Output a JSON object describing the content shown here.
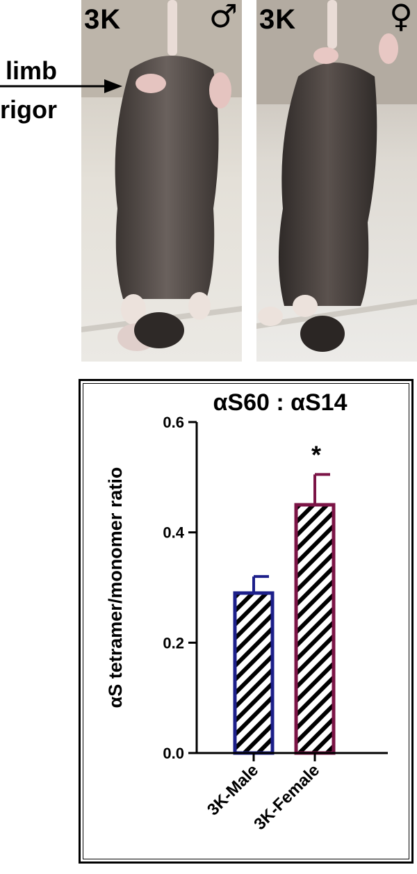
{
  "panels": {
    "male": {
      "label": "3K",
      "symbol": "♂"
    },
    "female": {
      "label": "3K",
      "symbol": "♀"
    }
  },
  "annotation": {
    "line1": "limb",
    "line2": "rigor"
  },
  "colors": {
    "male_bar": "#1c1f8a",
    "female_bar": "#7b1446",
    "axis": "#000000"
  },
  "chart_data": {
    "type": "bar",
    "title": "αS60 : αS14",
    "ylabel": "αS tetramer/monomer ratio",
    "xlabel": "",
    "ylim": [
      0,
      0.6
    ],
    "yticks": [
      0.0,
      0.2,
      0.4,
      0.6
    ],
    "ytick_labels": [
      "0.0",
      "0.2",
      "0.4",
      "0.6"
    ],
    "categories": [
      "3K-Male",
      "3K-Female"
    ],
    "values": [
      0.29,
      0.45
    ],
    "errors": [
      0.03,
      0.055
    ],
    "fill_pattern": "diagonal-hatch",
    "significance": [
      "",
      "*"
    ]
  }
}
